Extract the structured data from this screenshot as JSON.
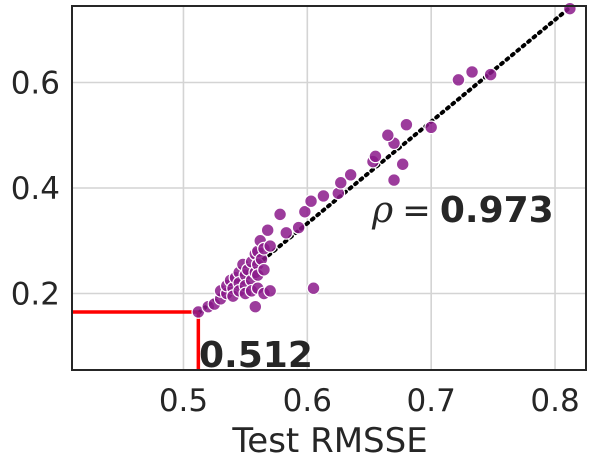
{
  "chart_data": {
    "type": "scatter",
    "title": "",
    "xlabel": "Test RMSSE",
    "ylabel": "",
    "xlim": [
      0.41,
      0.825
    ],
    "ylim": [
      0.055,
      0.745
    ],
    "xticks": [
      0.5,
      0.6,
      0.7,
      0.8
    ],
    "xtick_labels": [
      "0.5",
      "0.6",
      "0.7",
      "0.8"
    ],
    "yticks": [
      0.2,
      0.4,
      0.6
    ],
    "ytick_labels": [
      "0.2",
      "0.4",
      "0.6"
    ],
    "grid": true,
    "point_color": "#8b1a8b",
    "points": [
      [
        0.512,
        0.165
      ],
      [
        0.52,
        0.175
      ],
      [
        0.525,
        0.18
      ],
      [
        0.53,
        0.19
      ],
      [
        0.53,
        0.205
      ],
      [
        0.535,
        0.2
      ],
      [
        0.535,
        0.215
      ],
      [
        0.538,
        0.225
      ],
      [
        0.54,
        0.21
      ],
      [
        0.54,
        0.195
      ],
      [
        0.542,
        0.23
      ],
      [
        0.545,
        0.24
      ],
      [
        0.545,
        0.22
      ],
      [
        0.545,
        0.205
      ],
      [
        0.548,
        0.255
      ],
      [
        0.55,
        0.235
      ],
      [
        0.55,
        0.215
      ],
      [
        0.55,
        0.2
      ],
      [
        0.552,
        0.245
      ],
      [
        0.555,
        0.26
      ],
      [
        0.555,
        0.225
      ],
      [
        0.555,
        0.205
      ],
      [
        0.558,
        0.24
      ],
      [
        0.558,
        0.275
      ],
      [
        0.56,
        0.28
      ],
      [
        0.56,
        0.255
      ],
      [
        0.56,
        0.235
      ],
      [
        0.56,
        0.21
      ],
      [
        0.562,
        0.3
      ],
      [
        0.563,
        0.265
      ],
      [
        0.565,
        0.285
      ],
      [
        0.565,
        0.245
      ],
      [
        0.565,
        0.2
      ],
      [
        0.568,
        0.32
      ],
      [
        0.57,
        0.29
      ],
      [
        0.57,
        0.205
      ],
      [
        0.558,
        0.175
      ],
      [
        0.578,
        0.35
      ],
      [
        0.583,
        0.315
      ],
      [
        0.593,
        0.325
      ],
      [
        0.598,
        0.355
      ],
      [
        0.603,
        0.375
      ],
      [
        0.605,
        0.21
      ],
      [
        0.613,
        0.385
      ],
      [
        0.625,
        0.39
      ],
      [
        0.627,
        0.41
      ],
      [
        0.635,
        0.425
      ],
      [
        0.653,
        0.45
      ],
      [
        0.655,
        0.46
      ],
      [
        0.67,
        0.485
      ],
      [
        0.67,
        0.415
      ],
      [
        0.677,
        0.445
      ],
      [
        0.665,
        0.5
      ],
      [
        0.68,
        0.52
      ],
      [
        0.7,
        0.515
      ],
      [
        0.722,
        0.605
      ],
      [
        0.733,
        0.62
      ],
      [
        0.748,
        0.615
      ],
      [
        0.812,
        0.74
      ]
    ],
    "trend_line": {
      "from": [
        0.512,
        0.163
      ],
      "to": [
        0.812,
        0.742
      ],
      "style": "dotted",
      "color": "#000000"
    },
    "threshold": {
      "x": 0.512,
      "y": 0.165,
      "color": "#ff0000",
      "label": "0.512"
    },
    "correlation_annotation": {
      "symbol": "ρ",
      "equals": "=",
      "value": "0.973"
    }
  }
}
